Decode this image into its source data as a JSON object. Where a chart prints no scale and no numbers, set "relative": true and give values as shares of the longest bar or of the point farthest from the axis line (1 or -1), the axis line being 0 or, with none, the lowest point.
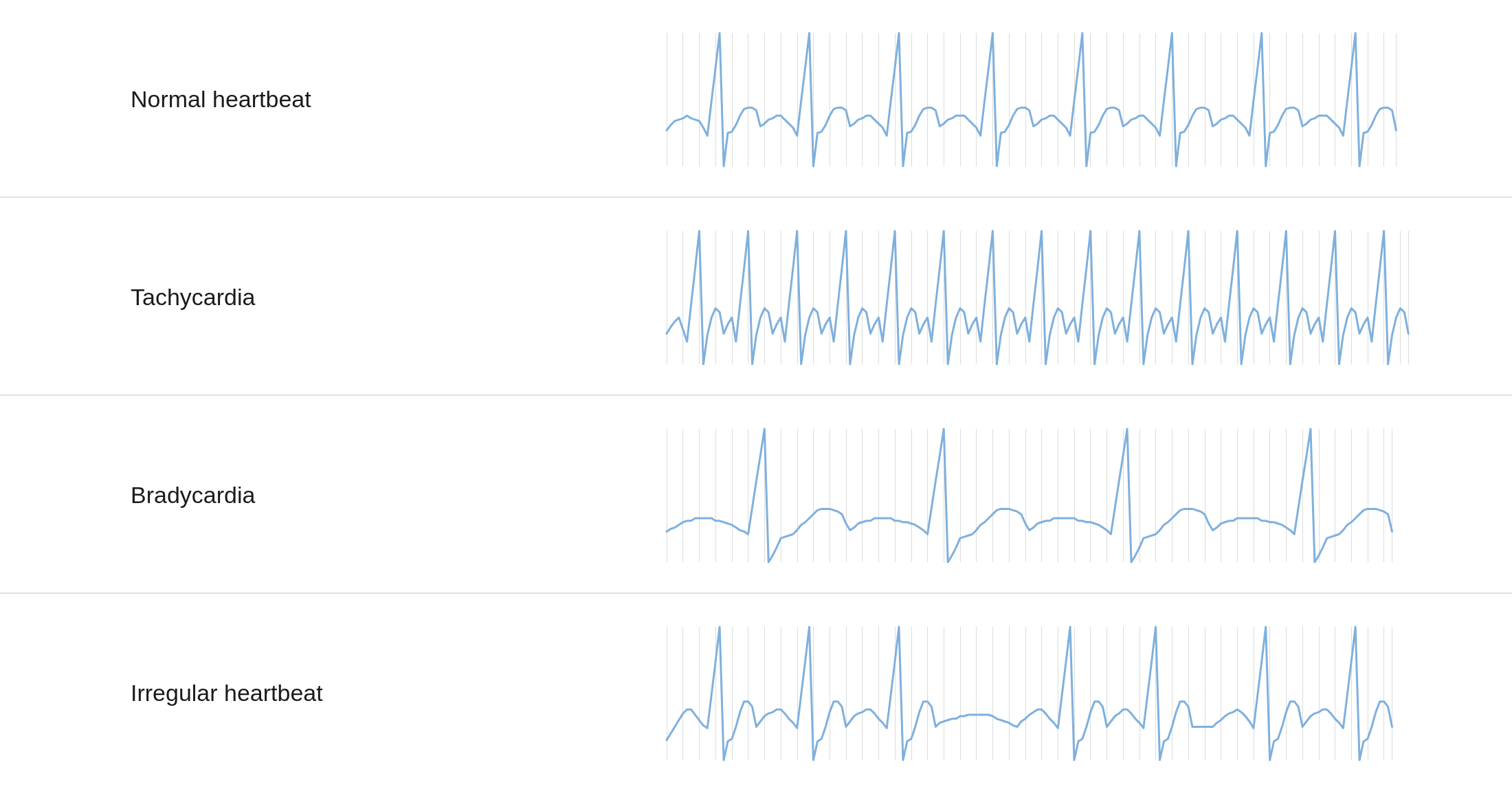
{
  "chart_data": [
    {
      "type": "line",
      "ylabel": "Normal heartbeat",
      "relative": true,
      "grid": "x",
      "categories": [
        null,
        null,
        null,
        null,
        null,
        null,
        null,
        null,
        null,
        null,
        null,
        null,
        null,
        null,
        null,
        null,
        null,
        null,
        null,
        null,
        null,
        null,
        null,
        null,
        null,
        null,
        null,
        null,
        null,
        null,
        null,
        null,
        null,
        null,
        null,
        null,
        null,
        null,
        null,
        null,
        null,
        null,
        null,
        null,
        null,
        null,
        null,
        null,
        null,
        null,
        null,
        null,
        null,
        null,
        null,
        null,
        null,
        null,
        null,
        null,
        null,
        null,
        null,
        null,
        null,
        null,
        null,
        null,
        null,
        null,
        null,
        null,
        null,
        null,
        null,
        null,
        null,
        null,
        null,
        null,
        null,
        null,
        null,
        null,
        null,
        null,
        null,
        null,
        null,
        null,
        null,
        null,
        null,
        null,
        null,
        null,
        null,
        null,
        null,
        null,
        null,
        null,
        null,
        null,
        null,
        null,
        null,
        null,
        null,
        null,
        null,
        null,
        null,
        null,
        null,
        null,
        null,
        null,
        null,
        null,
        null,
        null,
        null,
        null,
        null,
        null,
        null,
        null,
        null,
        null,
        null,
        null,
        null,
        null,
        null,
        null,
        null,
        null,
        null,
        null,
        null,
        null,
        null,
        null,
        null,
        null,
        null,
        null,
        null,
        null,
        null,
        null,
        null,
        null,
        null,
        null,
        null,
        null,
        null,
        null,
        null,
        null,
        null,
        null,
        null,
        null,
        null,
        null,
        null,
        null,
        null,
        null,
        null,
        null,
        null,
        null,
        null,
        null,
        null,
        null
      ],
      "series": [
        {
          "color": "#7fb0dd",
          "values": [
            0.27,
            0.31,
            0.34,
            0.35,
            0.36,
            0.38,
            0.36,
            0.35,
            0.34,
            0.29,
            0.23,
            0.49,
            0.74,
            1,
            0,
            0.25,
            0.26,
            0.31,
            0.38,
            0.43,
            0.44,
            0.44,
            0.42,
            0.3,
            0.32,
            0.35,
            0.36,
            0.38,
            0.38,
            0.35,
            0.32,
            0.29,
            0.23,
            0.49,
            0.74,
            1,
            0,
            0.25,
            0.26,
            0.31,
            0.38,
            0.43,
            0.44,
            0.44,
            0.42,
            0.3,
            0.32,
            0.35,
            0.36,
            0.38,
            0.38,
            0.35,
            0.32,
            0.29,
            0.23,
            0.49,
            0.74,
            1,
            0,
            0.25,
            0.26,
            0.31,
            0.38,
            0.43,
            0.44,
            0.44,
            0.42,
            0.3,
            0.32,
            0.35,
            0.36,
            0.38,
            0.38,
            0.38,
            0.35,
            0.32,
            0.29,
            0.23,
            0.49,
            0.74,
            1,
            0,
            0.25,
            0.26,
            0.31,
            0.38,
            0.43,
            0.44,
            0.44,
            0.42,
            0.3,
            0.32,
            0.35,
            0.36,
            0.38,
            0.38,
            0.35,
            0.32,
            0.29,
            0.23,
            0.49,
            0.74,
            1,
            0,
            0.25,
            0.26,
            0.31,
            0.38,
            0.43,
            0.44,
            0.44,
            0.42,
            0.3,
            0.32,
            0.35,
            0.36,
            0.38,
            0.38,
            0.35,
            0.32,
            0.29,
            0.23,
            0.49,
            0.74,
            1,
            0,
            0.25,
            0.26,
            0.31,
            0.38,
            0.43,
            0.44,
            0.44,
            0.42,
            0.3,
            0.32,
            0.35,
            0.36,
            0.38,
            0.38,
            0.35,
            0.32,
            0.29,
            0.23,
            0.49,
            0.74,
            1,
            0,
            0.25,
            0.26,
            0.31,
            0.38,
            0.43,
            0.44,
            0.44,
            0.42,
            0.3,
            0.32,
            0.35,
            0.36,
            0.38,
            0.38,
            0.38,
            0.35,
            0.32,
            0.29,
            0.23,
            0.49,
            0.74,
            1,
            0,
            0.25,
            0.26,
            0.31,
            0.38,
            0.43,
            0.44,
            0.44,
            0.42,
            0.27
          ]
        }
      ]
    },
    {
      "type": "line",
      "ylabel": "Tachycardia",
      "relative": true,
      "grid": "x",
      "categories": [
        null,
        null,
        null,
        null,
        null,
        null,
        null,
        null,
        null,
        null,
        null,
        null,
        null,
        null,
        null,
        null,
        null,
        null,
        null,
        null,
        null,
        null,
        null,
        null,
        null,
        null,
        null,
        null,
        null,
        null,
        null,
        null,
        null,
        null,
        null,
        null,
        null,
        null,
        null,
        null,
        null,
        null,
        null,
        null,
        null,
        null,
        null,
        null,
        null,
        null,
        null,
        null,
        null,
        null,
        null,
        null,
        null,
        null,
        null,
        null,
        null,
        null,
        null,
        null,
        null,
        null,
        null,
        null,
        null,
        null,
        null,
        null,
        null,
        null,
        null,
        null,
        null,
        null,
        null,
        null,
        null,
        null,
        null,
        null,
        null,
        null,
        null,
        null,
        null,
        null,
        null,
        null,
        null,
        null,
        null,
        null,
        null,
        null,
        null,
        null,
        null,
        null,
        null,
        null,
        null,
        null,
        null,
        null,
        null,
        null,
        null,
        null,
        null,
        null,
        null,
        null,
        null,
        null,
        null,
        null,
        null,
        null,
        null,
        null,
        null,
        null,
        null,
        null,
        null,
        null,
        null,
        null,
        null,
        null,
        null,
        null,
        null,
        null,
        null,
        null,
        null,
        null,
        null,
        null,
        null,
        null,
        null,
        null,
        null,
        null,
        null,
        null,
        null,
        null,
        null,
        null,
        null,
        null,
        null,
        null,
        null,
        null,
        null,
        null,
        null,
        null,
        null,
        null,
        null,
        null,
        null,
        null,
        null,
        null,
        null,
        null,
        null,
        null,
        null,
        null,
        null,
        null,
        null
      ],
      "series": [
        {
          "color": "#7fb0dd",
          "values": [
            0.23,
            0.28,
            0.32,
            0.35,
            0.26,
            0.17,
            0.45,
            0.72,
            1,
            0,
            0.22,
            0.35,
            0.42,
            0.39,
            0.23,
            0.3,
            0.35,
            0.17,
            0.45,
            0.72,
            1,
            0,
            0.22,
            0.35,
            0.42,
            0.39,
            0.23,
            0.3,
            0.35,
            0.17,
            0.45,
            0.72,
            1,
            0,
            0.22,
            0.35,
            0.42,
            0.39,
            0.23,
            0.3,
            0.35,
            0.17,
            0.45,
            0.72,
            1,
            0,
            0.22,
            0.35,
            0.42,
            0.39,
            0.23,
            0.3,
            0.35,
            0.17,
            0.45,
            0.72,
            1,
            0,
            0.22,
            0.35,
            0.42,
            0.39,
            0.23,
            0.3,
            0.35,
            0.17,
            0.45,
            0.72,
            1,
            0,
            0.22,
            0.35,
            0.42,
            0.39,
            0.23,
            0.3,
            0.35,
            0.17,
            0.45,
            0.72,
            1,
            0,
            0.22,
            0.35,
            0.42,
            0.39,
            0.23,
            0.3,
            0.35,
            0.17,
            0.45,
            0.72,
            1,
            0,
            0.22,
            0.35,
            0.42,
            0.39,
            0.23,
            0.3,
            0.35,
            0.17,
            0.45,
            0.72,
            1,
            0,
            0.22,
            0.35,
            0.42,
            0.39,
            0.23,
            0.3,
            0.35,
            0.17,
            0.45,
            0.72,
            1,
            0,
            0.22,
            0.35,
            0.42,
            0.39,
            0.23,
            0.3,
            0.35,
            0.17,
            0.45,
            0.72,
            1,
            0,
            0.22,
            0.35,
            0.42,
            0.39,
            0.23,
            0.3,
            0.35,
            0.17,
            0.45,
            0.72,
            1,
            0,
            0.22,
            0.35,
            0.42,
            0.39,
            0.23,
            0.3,
            0.35,
            0.17,
            0.45,
            0.72,
            1,
            0,
            0.22,
            0.35,
            0.42,
            0.39,
            0.23,
            0.3,
            0.35,
            0.17,
            0.45,
            0.72,
            1,
            0,
            0.22,
            0.35,
            0.42,
            0.39,
            0.23,
            0.3,
            0.35,
            0.17,
            0.45,
            0.72,
            1,
            0,
            0.22,
            0.35,
            0.42,
            0.39,
            0.23
          ]
        }
      ]
    },
    {
      "type": "line",
      "ylabel": "Bradycardia",
      "relative": true,
      "grid": "x",
      "categories": [
        null,
        null,
        null,
        null,
        null,
        null,
        null,
        null,
        null,
        null,
        null,
        null,
        null,
        null,
        null,
        null,
        null,
        null,
        null,
        null,
        null,
        null,
        null,
        null,
        null,
        null,
        null,
        null,
        null,
        null,
        null,
        null,
        null,
        null,
        null,
        null,
        null,
        null,
        null,
        null,
        null,
        null,
        null,
        null,
        null,
        null,
        null,
        null,
        null,
        null,
        null,
        null,
        null,
        null,
        null,
        null,
        null,
        null,
        null,
        null,
        null,
        null,
        null,
        null,
        null,
        null,
        null,
        null,
        null,
        null,
        null,
        null,
        null,
        null,
        null,
        null,
        null,
        null,
        null,
        null,
        null,
        null,
        null,
        null,
        null,
        null,
        null,
        null,
        null,
        null,
        null,
        null,
        null,
        null,
        null,
        null,
        null,
        null,
        null,
        null,
        null,
        null,
        null,
        null,
        null,
        null,
        null,
        null,
        null,
        null,
        null,
        null,
        null,
        null,
        null,
        null,
        null,
        null,
        null,
        null,
        null,
        null,
        null,
        null,
        null,
        null,
        null,
        null,
        null,
        null,
        null,
        null,
        null,
        null,
        null,
        null,
        null,
        null,
        null,
        null,
        null,
        null,
        null,
        null,
        null,
        null,
        null,
        null,
        null,
        null,
        null,
        null,
        null,
        null,
        null,
        null,
        null,
        null,
        null,
        null,
        null,
        null,
        null,
        null,
        null,
        null,
        null,
        null,
        null,
        null,
        null,
        null,
        null,
        null,
        null,
        null,
        null,
        null,
        null
      ],
      "series": [
        {
          "color": "#7fb0dd",
          "values": [
            0.23,
            0.25,
            0.26,
            0.28,
            0.3,
            0.31,
            0.31,
            0.33,
            0.33,
            0.33,
            0.33,
            0.33,
            0.31,
            0.31,
            0.3,
            0.29,
            0.28,
            0.26,
            0.24,
            0.23,
            0.21,
            0.41,
            0.61,
            0.8,
            1,
            0,
            0.05,
            0.11,
            0.18,
            0.19,
            0.2,
            0.21,
            0.24,
            0.28,
            0.3,
            0.33,
            0.36,
            0.39,
            0.4,
            0.4,
            0.4,
            0.39,
            0.38,
            0.36,
            0.29,
            0.24,
            0.26,
            0.29,
            0.3,
            0.31,
            0.31,
            0.33,
            0.33,
            0.33,
            0.33,
            0.33,
            0.31,
            0.31,
            0.3,
            0.3,
            0.29,
            0.28,
            0.26,
            0.24,
            0.21,
            0.41,
            0.61,
            0.8,
            1,
            0,
            0.05,
            0.11,
            0.18,
            0.19,
            0.2,
            0.21,
            0.24,
            0.28,
            0.3,
            0.33,
            0.36,
            0.39,
            0.4,
            0.4,
            0.4,
            0.39,
            0.38,
            0.36,
            0.29,
            0.24,
            0.26,
            0.29,
            0.3,
            0.31,
            0.31,
            0.33,
            0.33,
            0.33,
            0.33,
            0.33,
            0.33,
            0.31,
            0.31,
            0.3,
            0.3,
            0.29,
            0.28,
            0.26,
            0.24,
            0.21,
            0.41,
            0.61,
            0.8,
            1,
            0,
            0.05,
            0.11,
            0.18,
            0.19,
            0.2,
            0.21,
            0.24,
            0.28,
            0.3,
            0.33,
            0.36,
            0.39,
            0.4,
            0.4,
            0.4,
            0.39,
            0.38,
            0.36,
            0.29,
            0.24,
            0.26,
            0.29,
            0.3,
            0.31,
            0.31,
            0.33,
            0.33,
            0.33,
            0.33,
            0.33,
            0.33,
            0.31,
            0.31,
            0.3,
            0.3,
            0.29,
            0.28,
            0.26,
            0.24,
            0.21,
            0.41,
            0.61,
            0.8,
            1,
            0,
            0.05,
            0.11,
            0.18,
            0.19,
            0.2,
            0.21,
            0.24,
            0.28,
            0.3,
            0.33,
            0.36,
            0.39,
            0.4,
            0.4,
            0.4,
            0.39,
            0.38,
            0.36,
            0.23
          ]
        }
      ]
    },
    {
      "type": "line",
      "ylabel": "Irregular heartbeat",
      "relative": true,
      "grid": "x",
      "categories": [
        null,
        null,
        null,
        null,
        null,
        null,
        null,
        null,
        null,
        null,
        null,
        null,
        null,
        null,
        null,
        null,
        null,
        null,
        null,
        null,
        null,
        null,
        null,
        null,
        null,
        null,
        null,
        null,
        null,
        null,
        null,
        null,
        null,
        null,
        null,
        null,
        null,
        null,
        null,
        null,
        null,
        null,
        null,
        null,
        null,
        null,
        null,
        null,
        null,
        null,
        null,
        null,
        null,
        null,
        null,
        null,
        null,
        null,
        null,
        null,
        null,
        null,
        null,
        null,
        null,
        null,
        null,
        null,
        null,
        null,
        null,
        null,
        null,
        null,
        null,
        null,
        null,
        null,
        null,
        null,
        null,
        null,
        null,
        null,
        null,
        null,
        null,
        null,
        null,
        null,
        null,
        null,
        null,
        null,
        null,
        null,
        null,
        null,
        null,
        null,
        null,
        null,
        null,
        null,
        null,
        null,
        null,
        null,
        null,
        null,
        null,
        null,
        null,
        null,
        null,
        null,
        null,
        null,
        null,
        null,
        null,
        null,
        null,
        null,
        null,
        null,
        null,
        null,
        null,
        null,
        null,
        null,
        null,
        null,
        null,
        null,
        null,
        null,
        null,
        null,
        null,
        null,
        null,
        null,
        null,
        null,
        null,
        null,
        null,
        null,
        null,
        null,
        null,
        null,
        null,
        null,
        null,
        null,
        null,
        null,
        null,
        null,
        null,
        null,
        null,
        null,
        null,
        null,
        null,
        null,
        null,
        null,
        null,
        null,
        null,
        null,
        null,
        null,
        null
      ],
      "series": [
        {
          "color": "#7fb0dd",
          "values": [
            0.15,
            0.2,
            0.25,
            0.3,
            0.35,
            0.38,
            0.38,
            0.34,
            0.3,
            0.26,
            0.24,
            0.49,
            0.74,
            1,
            0,
            0.14,
            0.16,
            0.25,
            0.36,
            0.44,
            0.44,
            0.4,
            0.25,
            0.29,
            0.33,
            0.35,
            0.36,
            0.38,
            0.38,
            0.35,
            0.31,
            0.28,
            0.24,
            0.49,
            0.74,
            1,
            0,
            0.14,
            0.16,
            0.25,
            0.36,
            0.44,
            0.44,
            0.4,
            0.25,
            0.29,
            0.33,
            0.35,
            0.36,
            0.38,
            0.38,
            0.35,
            0.31,
            0.28,
            0.24,
            0.49,
            0.74,
            1,
            0,
            0.14,
            0.16,
            0.25,
            0.36,
            0.44,
            0.44,
            0.4,
            0.25,
            0.28,
            0.29,
            0.3,
            0.31,
            0.31,
            0.33,
            0.33,
            0.34,
            0.34,
            0.34,
            0.34,
            0.34,
            0.34,
            0.33,
            0.31,
            0.3,
            0.29,
            0.28,
            0.26,
            0.25,
            0.29,
            0.31,
            0.34,
            0.36,
            0.38,
            0.38,
            0.35,
            0.31,
            0.28,
            0.24,
            0.49,
            0.74,
            1,
            0,
            0.14,
            0.16,
            0.25,
            0.36,
            0.44,
            0.44,
            0.4,
            0.25,
            0.29,
            0.33,
            0.35,
            0.38,
            0.38,
            0.35,
            0.31,
            0.28,
            0.24,
            0.49,
            0.74,
            1,
            0,
            0.14,
            0.16,
            0.25,
            0.36,
            0.44,
            0.44,
            0.4,
            0.25,
            0.25,
            0.25,
            0.25,
            0.25,
            0.25,
            0.28,
            0.3,
            0.33,
            0.35,
            0.36,
            0.38,
            0.36,
            0.33,
            0.29,
            0.24,
            0.49,
            0.74,
            1,
            0,
            0.14,
            0.16,
            0.25,
            0.36,
            0.44,
            0.44,
            0.4,
            0.25,
            0.29,
            0.33,
            0.35,
            0.36,
            0.38,
            0.38,
            0.35,
            0.31,
            0.28,
            0.24,
            0.49,
            0.74,
            1,
            0,
            0.14,
            0.16,
            0.25,
            0.36,
            0.44,
            0.44,
            0.4,
            0.25
          ]
        }
      ]
    }
  ]
}
